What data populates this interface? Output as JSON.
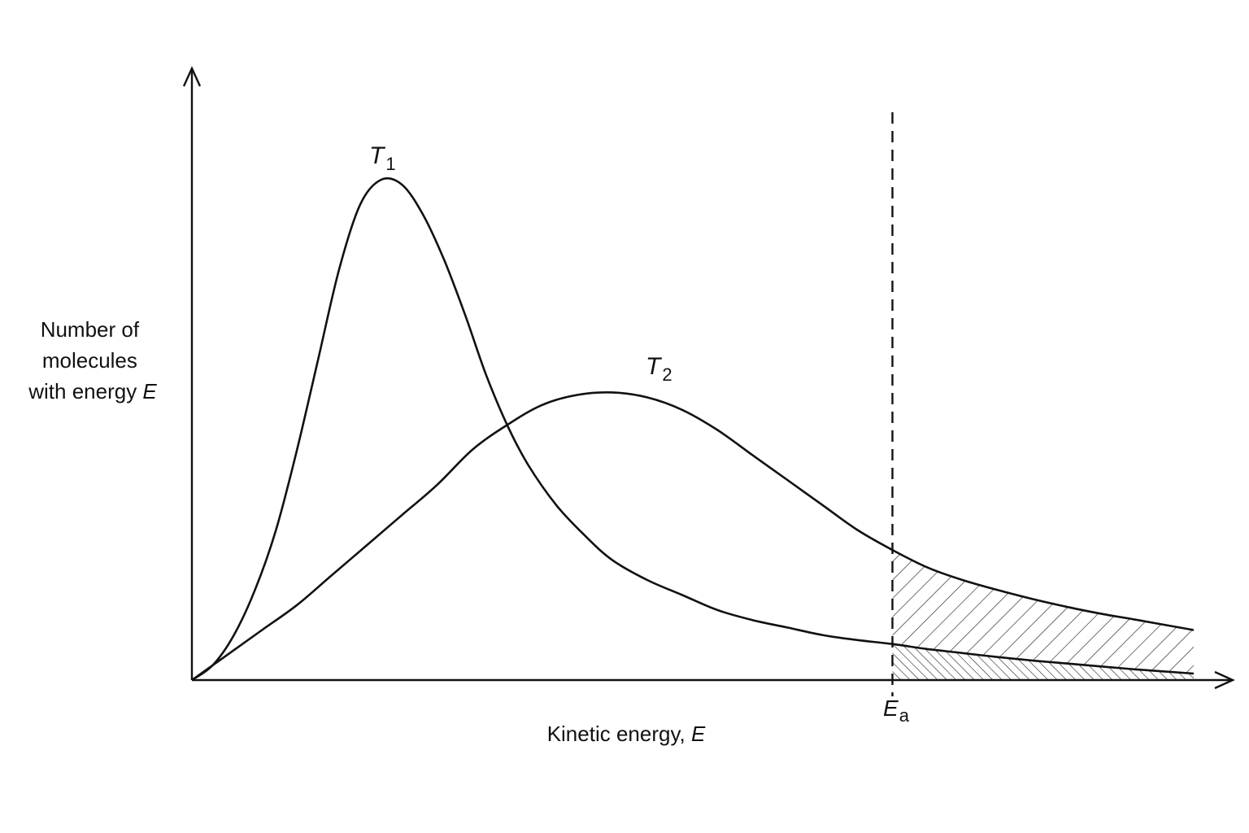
{
  "chart_data": {
    "type": "line",
    "title": "",
    "ylabel_lines": [
      "Number of",
      "molecules",
      "with energy "
    ],
    "ylabel_var": "E",
    "xlabel_text": "Kinetic energy, ",
    "xlabel_var": "E",
    "threshold": {
      "label_main": "E",
      "label_sub": "a",
      "x": 10.0
    },
    "xlim": [
      0,
      14.3
    ],
    "ylim": [
      0,
      1.0
    ],
    "grid": false,
    "series": [
      {
        "name_main": "T",
        "name_sub": "1",
        "x": [
          0,
          0.3,
          0.6,
          0.9,
          1.2,
          1.5,
          1.8,
          2.1,
          2.4,
          2.7,
          3.0,
          3.3,
          3.6,
          3.9,
          4.2,
          4.5,
          4.8,
          5.2,
          5.6,
          6.0,
          6.5,
          7.0,
          7.5,
          8.0,
          8.5,
          9.0,
          9.5,
          10.0,
          10.5,
          11.0,
          11.5,
          12.0,
          12.5,
          13.0,
          13.5,
          14.3
        ],
        "y": [
          0,
          0.03,
          0.09,
          0.18,
          0.3,
          0.46,
          0.64,
          0.82,
          0.95,
          1.0,
          0.99,
          0.93,
          0.84,
          0.73,
          0.61,
          0.51,
          0.43,
          0.35,
          0.29,
          0.24,
          0.2,
          0.17,
          0.14,
          0.12,
          0.105,
          0.09,
          0.08,
          0.072,
          0.062,
          0.054,
          0.046,
          0.039,
          0.033,
          0.027,
          0.021,
          0.013
        ]
      },
      {
        "name_main": "T",
        "name_sub": "2",
        "x": [
          0,
          0.5,
          1.0,
          1.5,
          2.0,
          2.5,
          3.0,
          3.5,
          4.0,
          4.5,
          5.0,
          5.5,
          6.0,
          6.5,
          7.0,
          7.5,
          8.0,
          8.5,
          9.0,
          9.5,
          10.0,
          10.5,
          11.0,
          11.5,
          12.0,
          12.5,
          13.0,
          13.5,
          14.3
        ],
        "y": [
          0,
          0.05,
          0.1,
          0.15,
          0.21,
          0.27,
          0.33,
          0.39,
          0.46,
          0.51,
          0.55,
          0.57,
          0.575,
          0.565,
          0.54,
          0.5,
          0.45,
          0.4,
          0.35,
          0.3,
          0.26,
          0.225,
          0.2,
          0.18,
          0.162,
          0.146,
          0.132,
          0.12,
          0.1
        ]
      }
    ],
    "shaded_regions": [
      "area under T2 curve beyond Ea",
      "area under T1 curve beyond Ea"
    ]
  }
}
